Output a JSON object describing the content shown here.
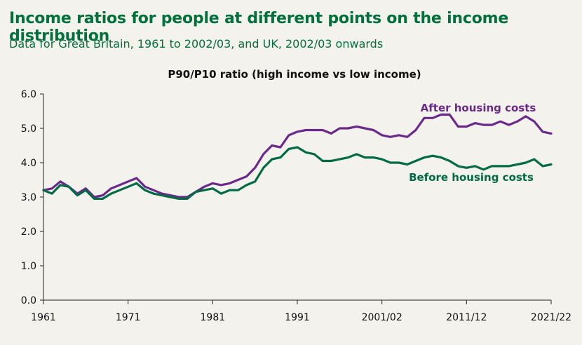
{
  "header": {
    "title": "Income ratios for people at different points on the income distribution",
    "subtitle": "Data for Great Britain, 1961 to 2002/03, and UK, 2002/03 onwards"
  },
  "colors": {
    "after": "#6b2a8a",
    "before": "#006b45",
    "title": "#00703c",
    "axis": "#222222"
  },
  "chart_data": {
    "type": "line",
    "title": "P90/P10  ratio (high income vs low income)",
    "xlabel": "",
    "ylabel": "",
    "ylim": [
      0,
      6
    ],
    "yticks": [
      "0.0",
      "1.0",
      "2.0",
      "3.0",
      "4.0",
      "5.0",
      "6.0"
    ],
    "xtick_labels": [
      "1961",
      "1971",
      "1981",
      "1991",
      "2001/02",
      "2011/12",
      "2021/22"
    ],
    "grid": false,
    "series": [
      {
        "name": "After housing costs",
        "values": [
          3.2,
          3.25,
          3.45,
          3.3,
          3.1,
          3.25,
          3.0,
          3.05,
          3.25,
          3.35,
          3.45,
          3.55,
          3.3,
          3.2,
          3.1,
          3.05,
          3.0,
          3.0,
          3.15,
          3.3,
          3.4,
          3.35,
          3.4,
          3.5,
          3.6,
          3.85,
          4.25,
          4.5,
          4.45,
          4.8,
          4.9,
          4.95,
          4.95,
          4.95,
          4.85,
          5.0,
          5.0,
          5.05,
          5.0,
          4.95,
          4.8,
          4.75,
          4.8,
          4.75,
          4.95,
          5.3,
          5.3,
          5.4,
          5.4,
          5.05,
          5.05,
          5.15,
          5.1,
          5.1,
          5.2,
          5.1,
          5.2,
          5.35,
          5.2,
          4.9,
          4.85
        ]
      },
      {
        "name": "Before housing costs",
        "values": [
          3.2,
          3.1,
          3.35,
          3.3,
          3.05,
          3.2,
          2.95,
          2.95,
          3.1,
          3.2,
          3.3,
          3.4,
          3.2,
          3.1,
          3.05,
          3.0,
          2.95,
          2.95,
          3.15,
          3.2,
          3.25,
          3.1,
          3.2,
          3.2,
          3.35,
          3.45,
          3.85,
          4.1,
          4.15,
          4.4,
          4.45,
          4.3,
          4.25,
          4.05,
          4.05,
          4.1,
          4.15,
          4.25,
          4.15,
          4.15,
          4.1,
          4.0,
          4.0,
          3.95,
          4.05,
          4.15,
          4.2,
          4.15,
          4.05,
          3.9,
          3.85,
          3.9,
          3.8,
          3.9,
          3.9,
          3.9,
          3.95,
          4.0,
          4.1,
          3.9,
          3.95
        ]
      }
    ]
  }
}
